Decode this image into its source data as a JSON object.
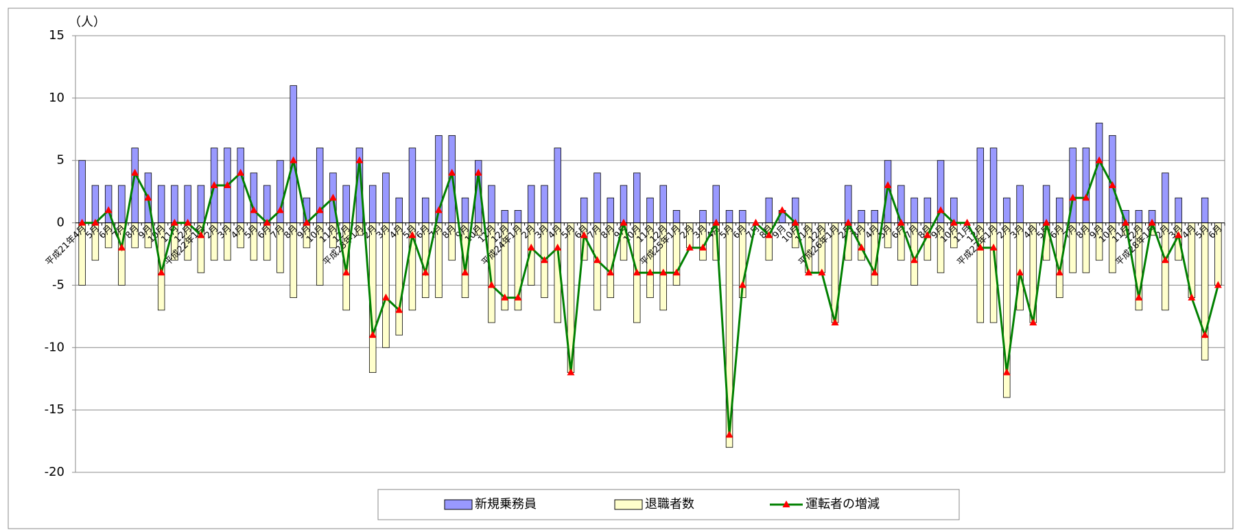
{
  "chart_data": {
    "type": "bar",
    "unit_label": "（人）",
    "categories": [
      "平成21年4月",
      "5月",
      "6月",
      "7月",
      "8月",
      "9月",
      "10月",
      "11月",
      "12月",
      "平成22年1月",
      "2月",
      "3月",
      "4月",
      "5月",
      "6月",
      "7月",
      "8月",
      "9月",
      "10月",
      "11月",
      "12月",
      "平成23年1月",
      "2月",
      "3月",
      "4月",
      "5月",
      "6月",
      "7月",
      "8月",
      "9月",
      "10月",
      "11月",
      "12月",
      "平成24年1月",
      "2月",
      "3月",
      "4月",
      "5月",
      "6月",
      "7月",
      "8月",
      "9月",
      "10月",
      "11月",
      "12月",
      "平成25年1月",
      "2月",
      "3月",
      "4月",
      "5月",
      "6月",
      "7月",
      "8月",
      "9月",
      "10月",
      "11月",
      "12月",
      "平成26年1月",
      "2月",
      "3月",
      "4月",
      "5月",
      "6月",
      "7月",
      "8月",
      "9月",
      "10月",
      "11月",
      "12月",
      "平成27年1月",
      "2月",
      "3月",
      "4月",
      "5月",
      "6月",
      "7月",
      "8月",
      "9月",
      "10月",
      "11月",
      "12月",
      "平成28年1月",
      "2月",
      "3月",
      "4月",
      "5月",
      "6月"
    ],
    "series": [
      {
        "name": "新規乗務員",
        "kind": "bar",
        "color": "#9999ff",
        "values": [
          5,
          3,
          3,
          3,
          6,
          4,
          3,
          3,
          3,
          3,
          6,
          6,
          6,
          4,
          3,
          5,
          11,
          2,
          6,
          4,
          3,
          6,
          3,
          4,
          2,
          6,
          2,
          7,
          7,
          2,
          5,
          3,
          1,
          1,
          3,
          3,
          6,
          0,
          2,
          4,
          2,
          3,
          4,
          2,
          3,
          1,
          0,
          1,
          3,
          1,
          1,
          0,
          2,
          1,
          2,
          0,
          0,
          0,
          3,
          1,
          1,
          5,
          3,
          2,
          2,
          5,
          2,
          0,
          6,
          6,
          2,
          3,
          0,
          3,
          2,
          6,
          6,
          8,
          7,
          1,
          1,
          1,
          4,
          2,
          0,
          2,
          0
        ]
      },
      {
        "name": "退職者数",
        "kind": "bar",
        "color": "#ffffcc",
        "values": [
          -5,
          -3,
          -2,
          -5,
          -2,
          -2,
          -7,
          -3,
          -3,
          -4,
          -3,
          -3,
          -2,
          -3,
          -3,
          -4,
          -6,
          -2,
          -5,
          -2,
          -7,
          -1,
          -12,
          -10,
          -9,
          -7,
          -6,
          -6,
          -3,
          -6,
          -1,
          -8,
          -7,
          -7,
          -5,
          -6,
          -8,
          -12,
          -3,
          -7,
          -6,
          -3,
          -8,
          -6,
          -7,
          -5,
          -2,
          -3,
          -3,
          -18,
          -6,
          0,
          -3,
          0,
          -2,
          -4,
          -4,
          -8,
          -3,
          -3,
          -5,
          -2,
          -3,
          -5,
          -3,
          -4,
          -2,
          0,
          -8,
          -8,
          -14,
          -7,
          -8,
          -3,
          -6,
          -4,
          -4,
          -3,
          -4,
          -1,
          -7,
          -1,
          -7,
          -3,
          -6,
          -11,
          -5
        ]
      },
      {
        "name": "運転者の増減",
        "kind": "line",
        "color": "#008000",
        "marker_color": "#ff0000",
        "values": [
          0,
          0,
          1,
          -2,
          4,
          2,
          -4,
          0,
          0,
          -1,
          3,
          3,
          4,
          1,
          0,
          1,
          5,
          0,
          1,
          2,
          -4,
          5,
          -9,
          -6,
          -7,
          -1,
          -4,
          1,
          4,
          -4,
          4,
          -5,
          -6,
          -6,
          -2,
          -3,
          -2,
          -12,
          -1,
          -3,
          -4,
          0,
          -4,
          -4,
          -4,
          -4,
          -2,
          -2,
          0,
          -17,
          -5,
          0,
          -1,
          1,
          0,
          -4,
          -4,
          -8,
          0,
          -2,
          -4,
          3,
          0,
          -3,
          -1,
          1,
          0,
          0,
          -2,
          -2,
          -12,
          -4,
          -8,
          0,
          -4,
          2,
          2,
          5,
          3,
          0,
          -6,
          0,
          -3,
          -1,
          -6,
          -9,
          -5
        ]
      }
    ],
    "ylim": [
      -20,
      15
    ],
    "yticks": [
      -20,
      -15,
      -10,
      -5,
      0,
      5,
      10,
      15
    ],
    "grid": true
  }
}
